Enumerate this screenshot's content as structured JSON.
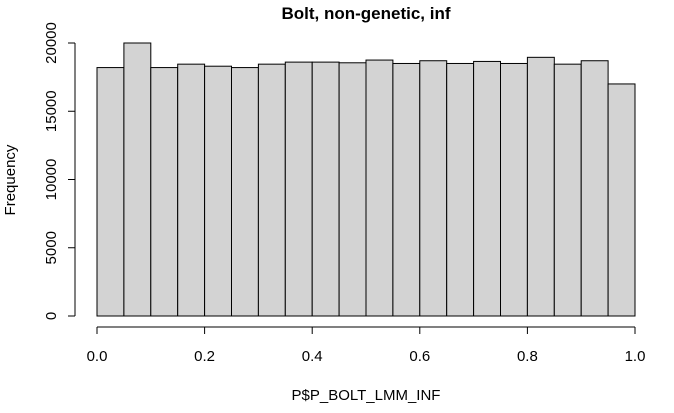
{
  "chart_data": {
    "type": "bar",
    "title": "Bolt, non-genetic, inf",
    "xlabel": "P$P_BOLT_LMM_INF",
    "ylabel": "Frequency",
    "bin_edges": [
      0.0,
      0.05,
      0.1,
      0.15,
      0.2,
      0.25,
      0.3,
      0.35,
      0.4,
      0.45,
      0.5,
      0.55,
      0.6,
      0.65,
      0.7,
      0.75,
      0.8,
      0.85,
      0.9,
      0.95,
      1.0
    ],
    "values": [
      18200,
      20000,
      18200,
      18450,
      18300,
      18200,
      18450,
      18600,
      18600,
      18550,
      18750,
      18500,
      18700,
      18500,
      18650,
      18500,
      18950,
      18450,
      18700,
      17000
    ],
    "xlim": [
      0.0,
      1.0
    ],
    "ylim": [
      0,
      20000
    ],
    "x_ticks": [
      0.0,
      0.2,
      0.4,
      0.6,
      0.8,
      1.0
    ],
    "x_tick_labels": [
      "0.0",
      "0.2",
      "0.4",
      "0.6",
      "0.8",
      "1.0"
    ],
    "y_ticks": [
      0,
      5000,
      10000,
      15000,
      20000
    ],
    "y_tick_labels": [
      "0",
      "5000",
      "10000",
      "15000",
      "20000"
    ],
    "bar_color": "#d3d3d3",
    "grid": false,
    "legend": "none"
  }
}
